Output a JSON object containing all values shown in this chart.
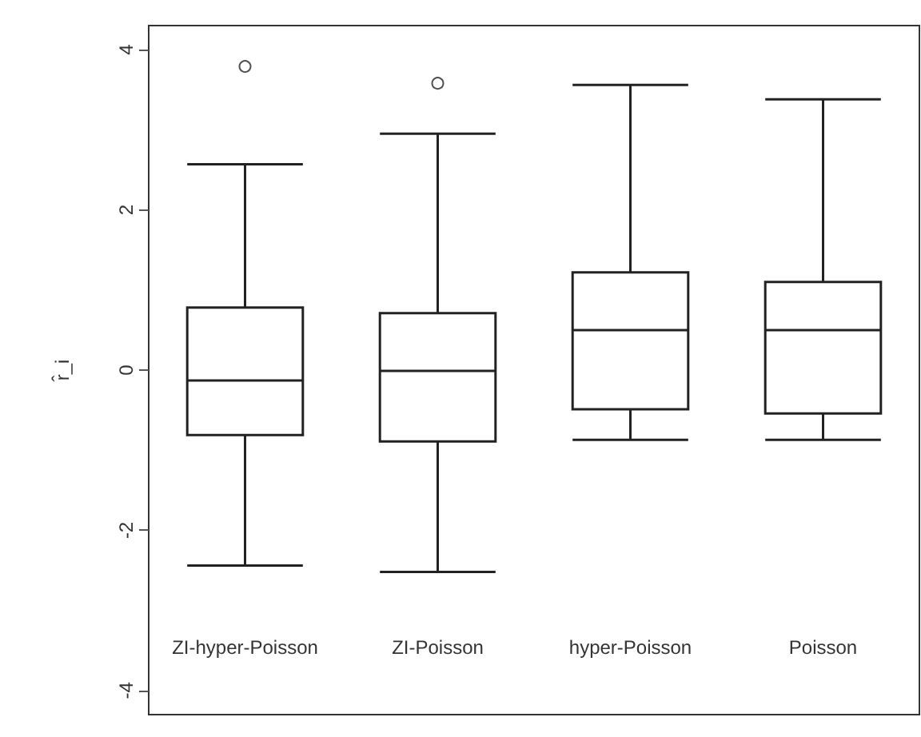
{
  "chart_data": {
    "type": "box",
    "ylabel": "r̂_i",
    "categories": [
      "ZI-hyper-Poisson",
      "ZI-Poisson",
      "hyper-Poisson",
      "Poisson"
    ],
    "boxes": [
      {
        "low": -2.44,
        "q1": -0.81,
        "median": -0.13,
        "q3": 0.78,
        "high": 2.57,
        "outliers": [
          3.79
        ]
      },
      {
        "low": -2.52,
        "q1": -0.89,
        "median": -0.01,
        "q3": 0.71,
        "high": 2.95,
        "outliers": [
          3.58
        ]
      },
      {
        "low": -0.87,
        "q1": -0.49,
        "median": 0.5,
        "q3": 1.22,
        "high": 3.56
      },
      {
        "low": -0.87,
        "q1": -0.54,
        "median": 0.5,
        "q3": 1.1,
        "high": 3.38
      }
    ],
    "ylim": [
      -4.3,
      4.3
    ],
    "yticks": [
      -4,
      -2,
      0,
      2,
      4
    ],
    "grid": false
  }
}
